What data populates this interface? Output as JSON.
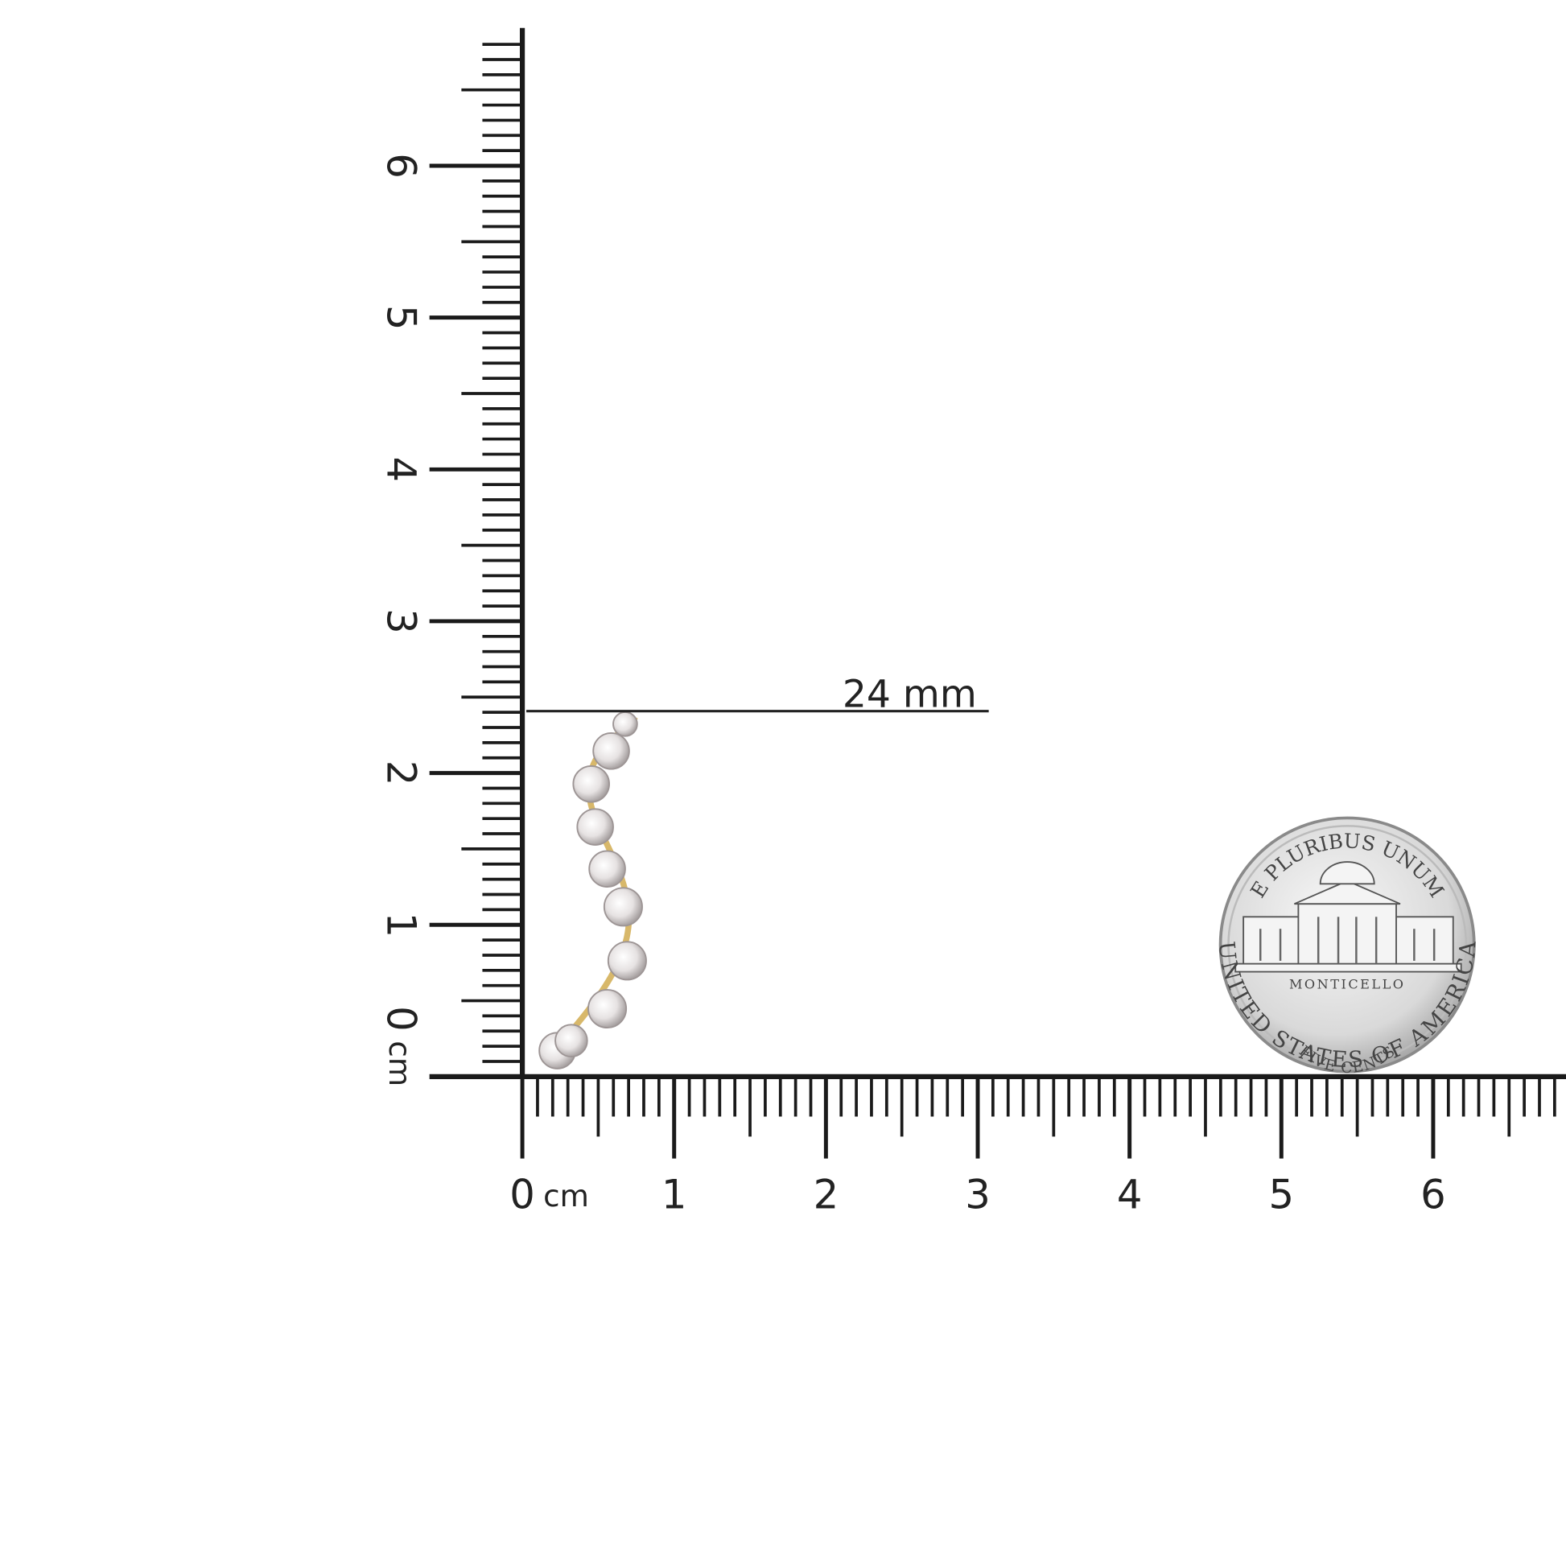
{
  "vertical_ruler": {
    "labels": [
      "0",
      "1",
      "2",
      "3",
      "4",
      "5",
      "6"
    ],
    "unit": "cm"
  },
  "horizontal_ruler": {
    "labels": [
      "0",
      "1",
      "2",
      "3",
      "4",
      "5",
      "6"
    ],
    "unit": "cm"
  },
  "measurement": {
    "label": "24 mm"
  },
  "coin": {
    "top_text": "E PLURIBUS UNUM",
    "building_text": "MONTICELLO",
    "value_text": "FIVE CENTS",
    "bottom_text": "UNITED STATES OF AMERICA"
  }
}
